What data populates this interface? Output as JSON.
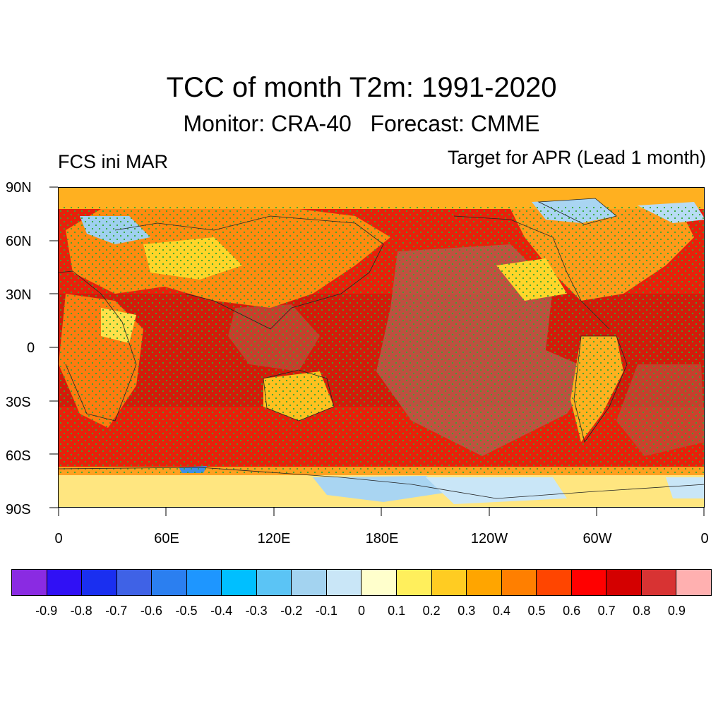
{
  "title": "TCC of month T2m: 1991-2020",
  "subtitle": "Monitor: CRA-40   Forecast: CMME",
  "left_label": "FCS ini MAR",
  "right_label": "Target for APR (Lead 1 month)",
  "lat_labels": [
    "90N",
    "60N",
    "30N",
    "0",
    "30S",
    "60S",
    "90S"
  ],
  "lon_labels": [
    "0",
    "60E",
    "120E",
    "180E",
    "120W",
    "60W",
    "0"
  ],
  "colorbar": {
    "colors": [
      "#8a2be2",
      "#3010f5",
      "#1a2ff0",
      "#3f62e6",
      "#2b7ff0",
      "#1e96ff",
      "#00bfff",
      "#5bc4f5",
      "#a3d3f0",
      "#c9e6f7",
      "#ffffcc",
      "#ffef5c",
      "#ffcc22",
      "#ffa500",
      "#ff7f00",
      "#ff4500",
      "#ff0000",
      "#d40000",
      "#d83333",
      "#ffb0b0"
    ],
    "labels": [
      "-0.9",
      "-0.8",
      "-0.7",
      "-0.6",
      "-0.5",
      "-0.4",
      "-0.3",
      "-0.2",
      "-0.1",
      "0",
      "0.1",
      "0.2",
      "0.3",
      "0.4",
      "0.5",
      "0.6",
      "0.7",
      "0.8",
      "0.9"
    ]
  },
  "stipple_color": "#33aa33"
}
